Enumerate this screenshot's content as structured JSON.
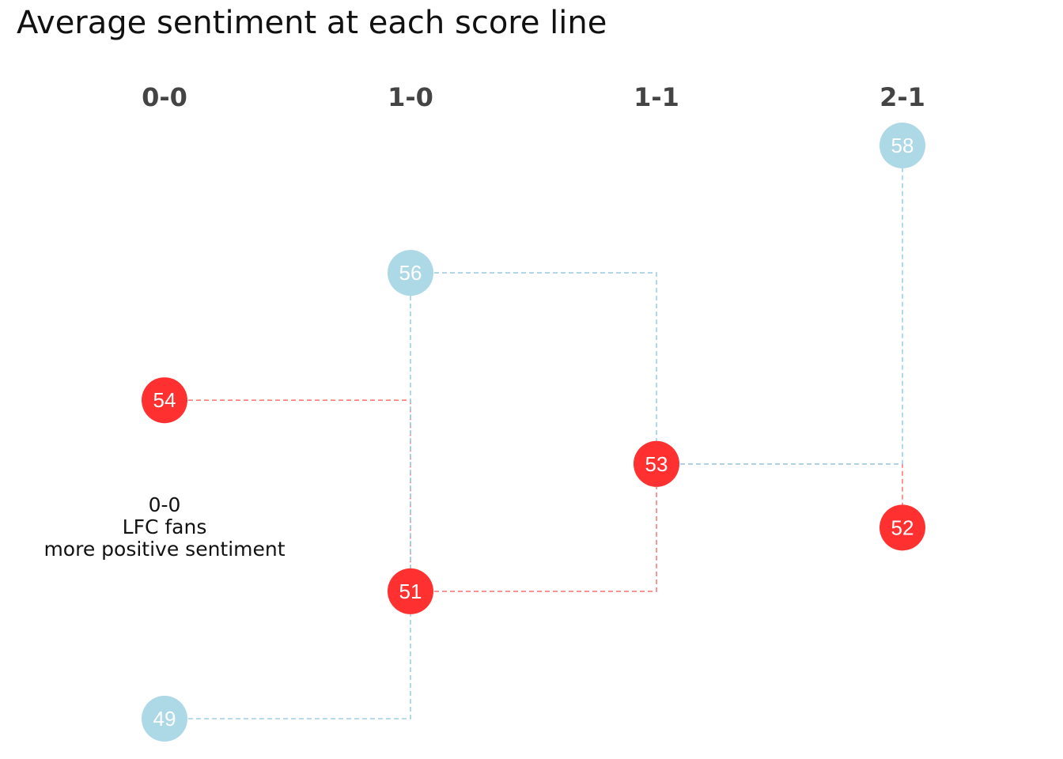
{
  "chart_data": {
    "type": "scatter",
    "title": "Average sentiment at each score line",
    "categories": [
      "0-0",
      "1-0",
      "1-1",
      "2-1"
    ],
    "ylim": [
      48,
      59
    ],
    "grid": false,
    "legend": "none",
    "series": [
      {
        "key": "blue",
        "color": "#add8e6",
        "values": [
          49,
          56,
          53,
          58
        ]
      },
      {
        "key": "red",
        "color": "#ff3030",
        "values": [
          54,
          51,
          53,
          52
        ]
      }
    ],
    "connectors": [
      {
        "series": "red",
        "from": 0,
        "to": 1
      },
      {
        "series": "blue",
        "from": 0,
        "to": 1
      },
      {
        "series": "blue",
        "from": 1,
        "to": 2
      },
      {
        "series": "red",
        "from": 1,
        "to": 2
      },
      {
        "series": "red",
        "from": 2,
        "to": 3
      },
      {
        "series": "blue",
        "from": 2,
        "to": 3
      }
    ],
    "annotations": [
      {
        "category": 0,
        "y": 51.5,
        "lines": [
          "0-0",
          "LFC fans",
          "more positive sentiment"
        ]
      }
    ]
  }
}
